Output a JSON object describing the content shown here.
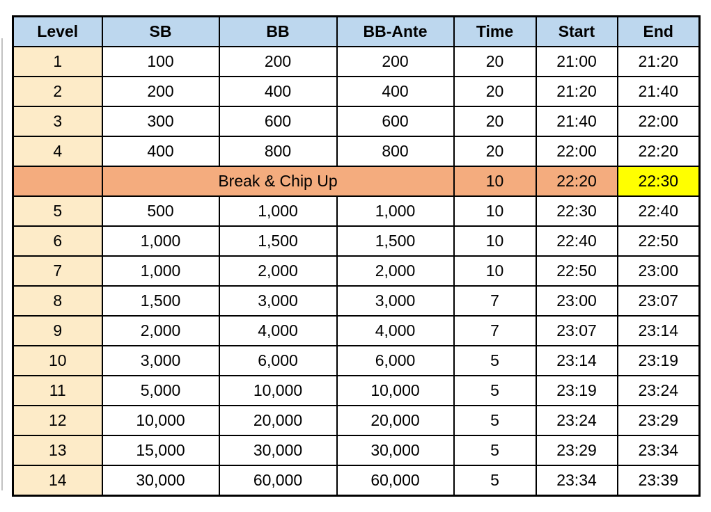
{
  "colors": {
    "header_bg": "#BDD7EE",
    "level_bg": "#FDEBC8",
    "break_bg": "#F4AC7E",
    "highlight_bg": "#FFFF00",
    "border": "#000000",
    "text": "#000000"
  },
  "chart_data": {
    "type": "table",
    "title": "",
    "columns": [
      "Level",
      "SB",
      "BB",
      "BB-Ante",
      "Time",
      "Start",
      "End"
    ],
    "rows": [
      {
        "type": "level",
        "level": "1",
        "sb": "100",
        "bb": "200",
        "bb_ante": "200",
        "time": "20",
        "start": "21:00",
        "end": "21:20"
      },
      {
        "type": "level",
        "level": "2",
        "sb": "200",
        "bb": "400",
        "bb_ante": "400",
        "time": "20",
        "start": "21:20",
        "end": "21:40"
      },
      {
        "type": "level",
        "level": "3",
        "sb": "300",
        "bb": "600",
        "bb_ante": "600",
        "time": "20",
        "start": "21:40",
        "end": "22:00"
      },
      {
        "type": "level",
        "level": "4",
        "sb": "400",
        "bb": "800",
        "bb_ante": "800",
        "time": "20",
        "start": "22:00",
        "end": "22:20"
      },
      {
        "type": "break",
        "label": "Break & Chip Up",
        "time": "10",
        "start": "22:20",
        "end": "22:30",
        "end_highlighted": true
      },
      {
        "type": "level",
        "level": "5",
        "sb": "500",
        "bb": "1,000",
        "bb_ante": "1,000",
        "time": "10",
        "start": "22:30",
        "end": "22:40"
      },
      {
        "type": "level",
        "level": "6",
        "sb": "1,000",
        "bb": "1,500",
        "bb_ante": "1,500",
        "time": "10",
        "start": "22:40",
        "end": "22:50"
      },
      {
        "type": "level",
        "level": "7",
        "sb": "1,000",
        "bb": "2,000",
        "bb_ante": "2,000",
        "time": "10",
        "start": "22:50",
        "end": "23:00"
      },
      {
        "type": "level",
        "level": "8",
        "sb": "1,500",
        "bb": "3,000",
        "bb_ante": "3,000",
        "time": "7",
        "start": "23:00",
        "end": "23:07"
      },
      {
        "type": "level",
        "level": "9",
        "sb": "2,000",
        "bb": "4,000",
        "bb_ante": "4,000",
        "time": "7",
        "start": "23:07",
        "end": "23:14"
      },
      {
        "type": "level",
        "level": "10",
        "sb": "3,000",
        "bb": "6,000",
        "bb_ante": "6,000",
        "time": "5",
        "start": "23:14",
        "end": "23:19"
      },
      {
        "type": "level",
        "level": "11",
        "sb": "5,000",
        "bb": "10,000",
        "bb_ante": "10,000",
        "time": "5",
        "start": "23:19",
        "end": "23:24"
      },
      {
        "type": "level",
        "level": "12",
        "sb": "10,000",
        "bb": "20,000",
        "bb_ante": "20,000",
        "time": "5",
        "start": "23:24",
        "end": "23:29"
      },
      {
        "type": "level",
        "level": "13",
        "sb": "15,000",
        "bb": "30,000",
        "bb_ante": "30,000",
        "time": "5",
        "start": "23:29",
        "end": "23:34"
      },
      {
        "type": "level",
        "level": "14",
        "sb": "30,000",
        "bb": "60,000",
        "bb_ante": "60,000",
        "time": "5",
        "start": "23:34",
        "end": "23:39"
      }
    ]
  }
}
